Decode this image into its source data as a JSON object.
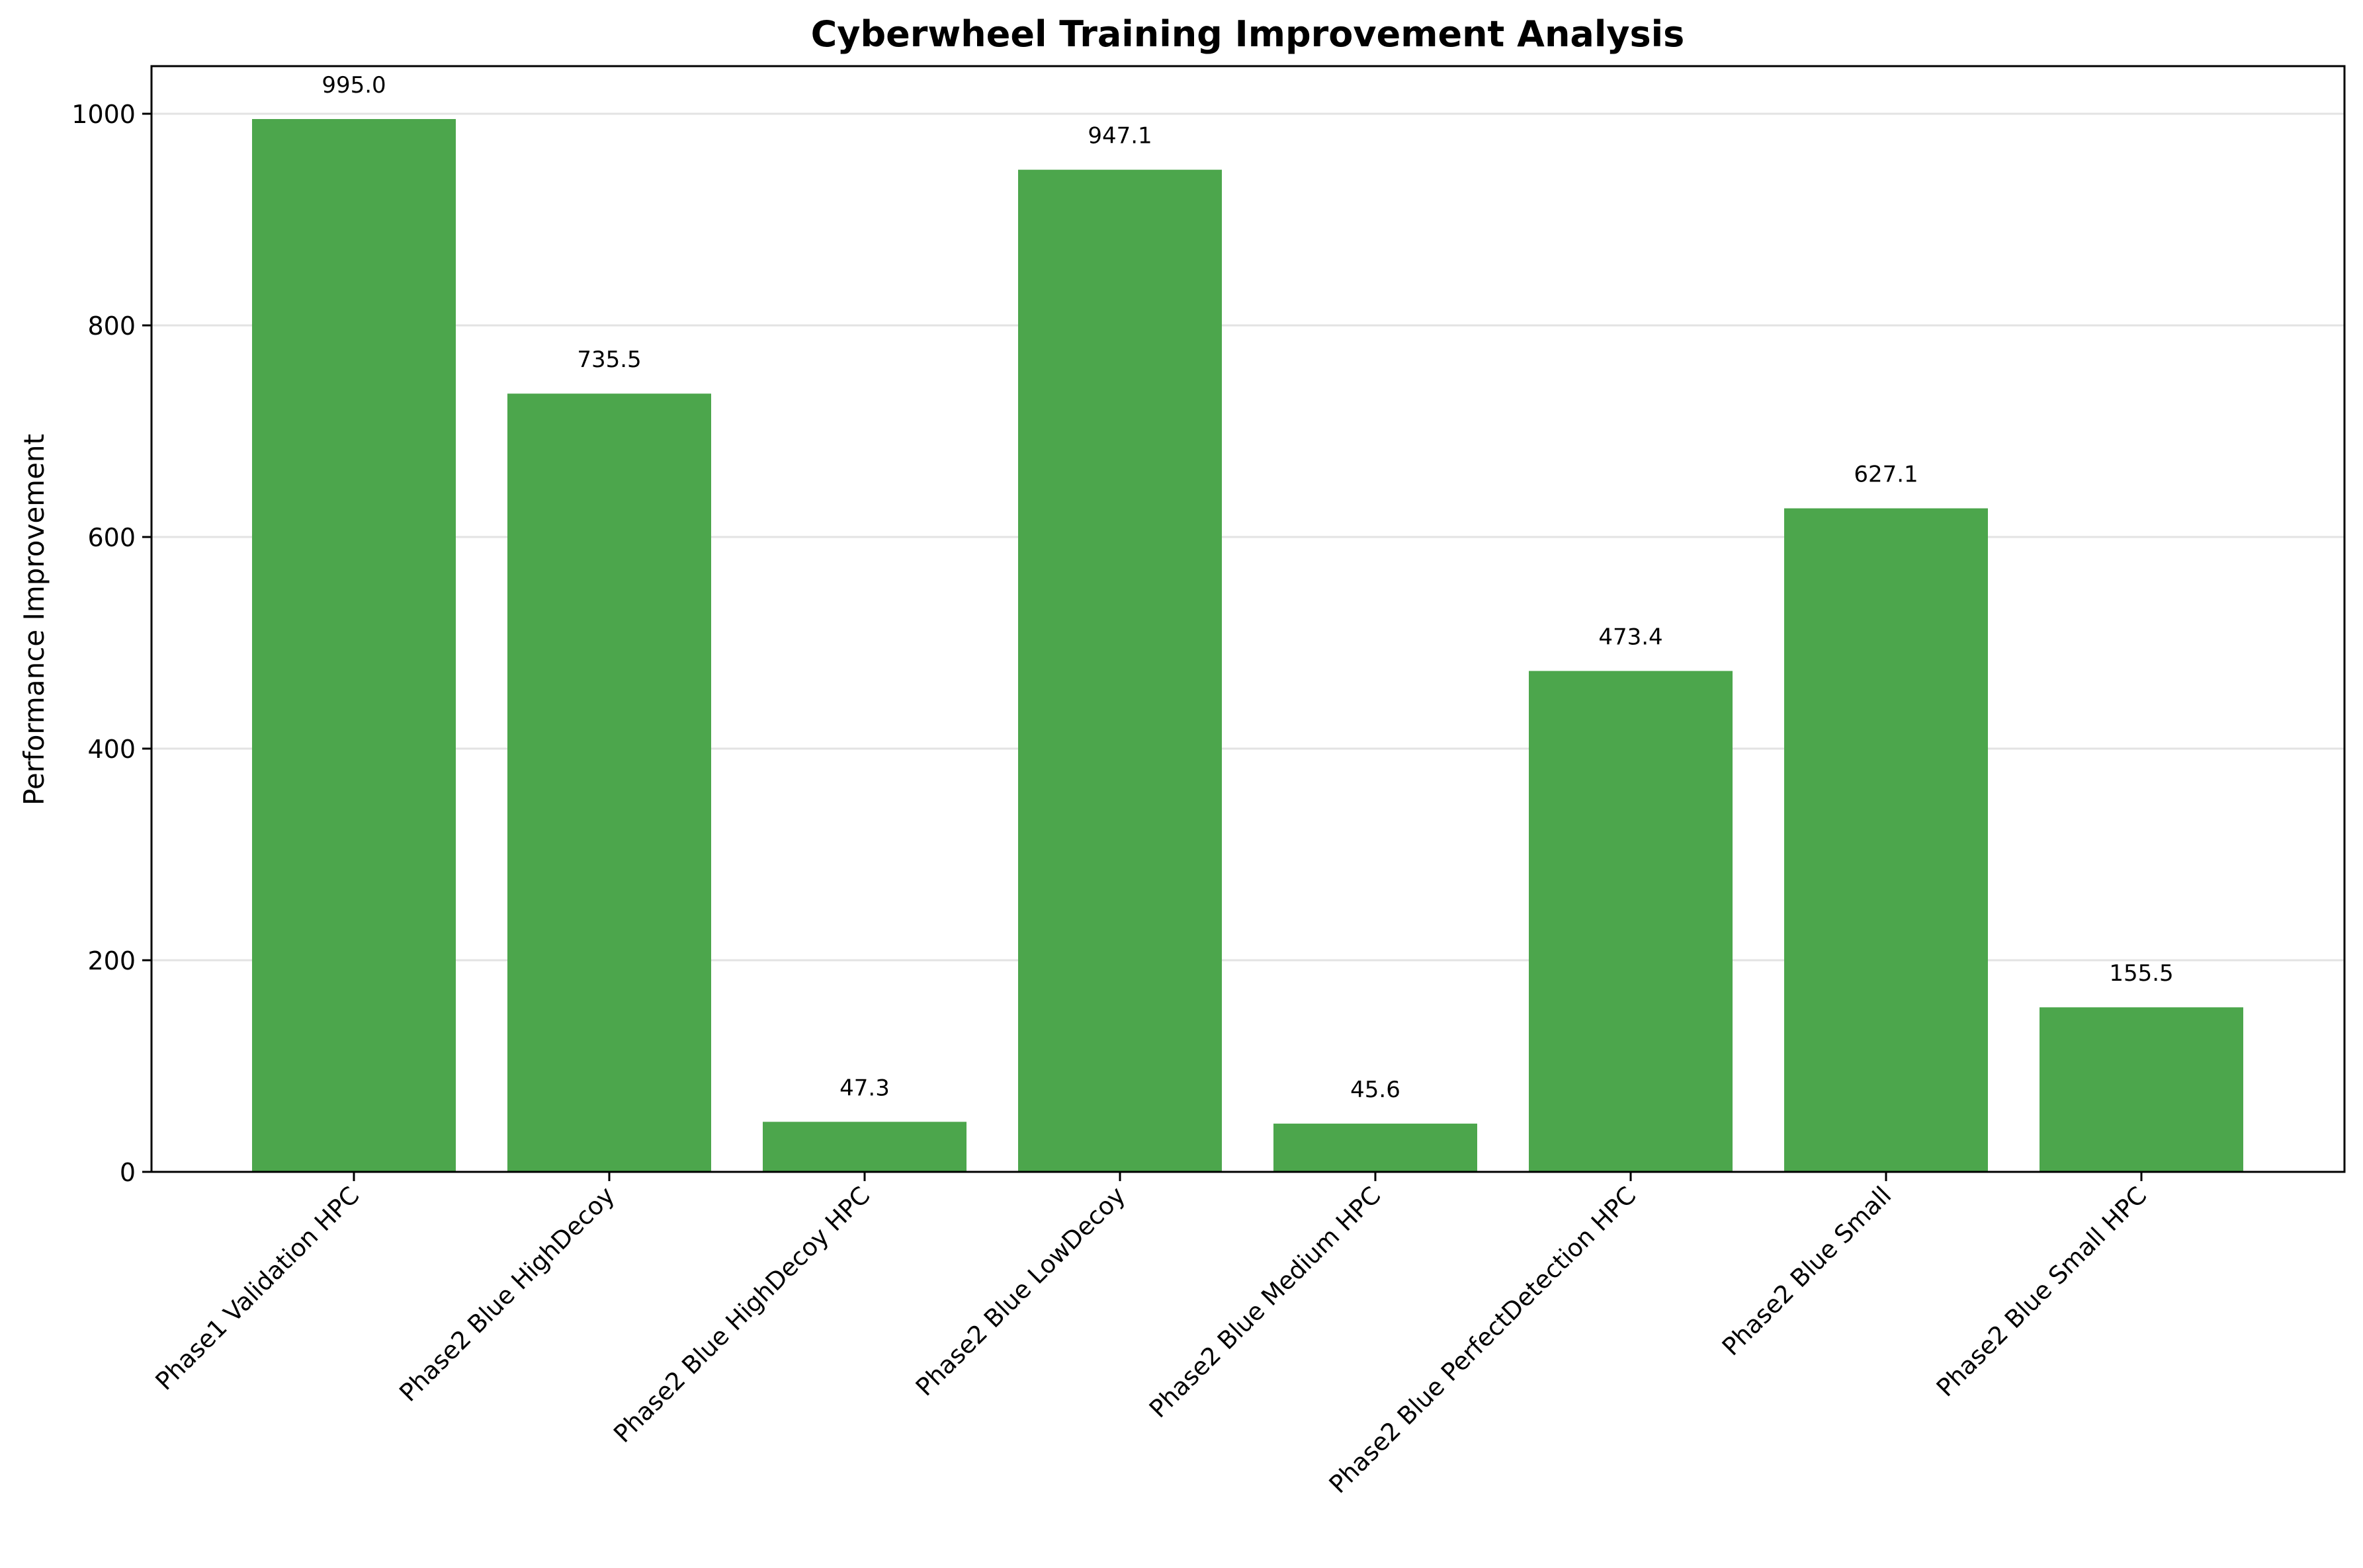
{
  "chart_data": {
    "type": "bar",
    "title": "Cyberwheel Training Improvement Analysis",
    "xlabel": "",
    "ylabel": "Performance Improvement",
    "categories": [
      "Phase1 Validation HPC",
      "Phase2 Blue HighDecoy",
      "Phase2 Blue HighDecoy HPC",
      "Phase2 Blue LowDecoy",
      "Phase2 Blue Medium HPC",
      "Phase2 Blue PerfectDetection HPC",
      "Phase2 Blue Small",
      "Phase2 Blue Small HPC"
    ],
    "values": [
      995.0,
      735.5,
      47.3,
      947.1,
      45.6,
      473.4,
      627.1,
      155.5
    ],
    "value_labels": [
      "995.0",
      "735.5",
      "47.3",
      "947.1",
      "45.6",
      "473.4",
      "627.1",
      "155.5"
    ],
    "ylim": [
      0,
      1045
    ],
    "yticks": [
      0,
      200,
      400,
      600,
      800,
      1000
    ],
    "ytick_labels": [
      "0",
      "200",
      "400",
      "600",
      "800",
      "1000"
    ],
    "grid": "horizontal",
    "legend": "none",
    "bar_color": "#4ca64c"
  }
}
